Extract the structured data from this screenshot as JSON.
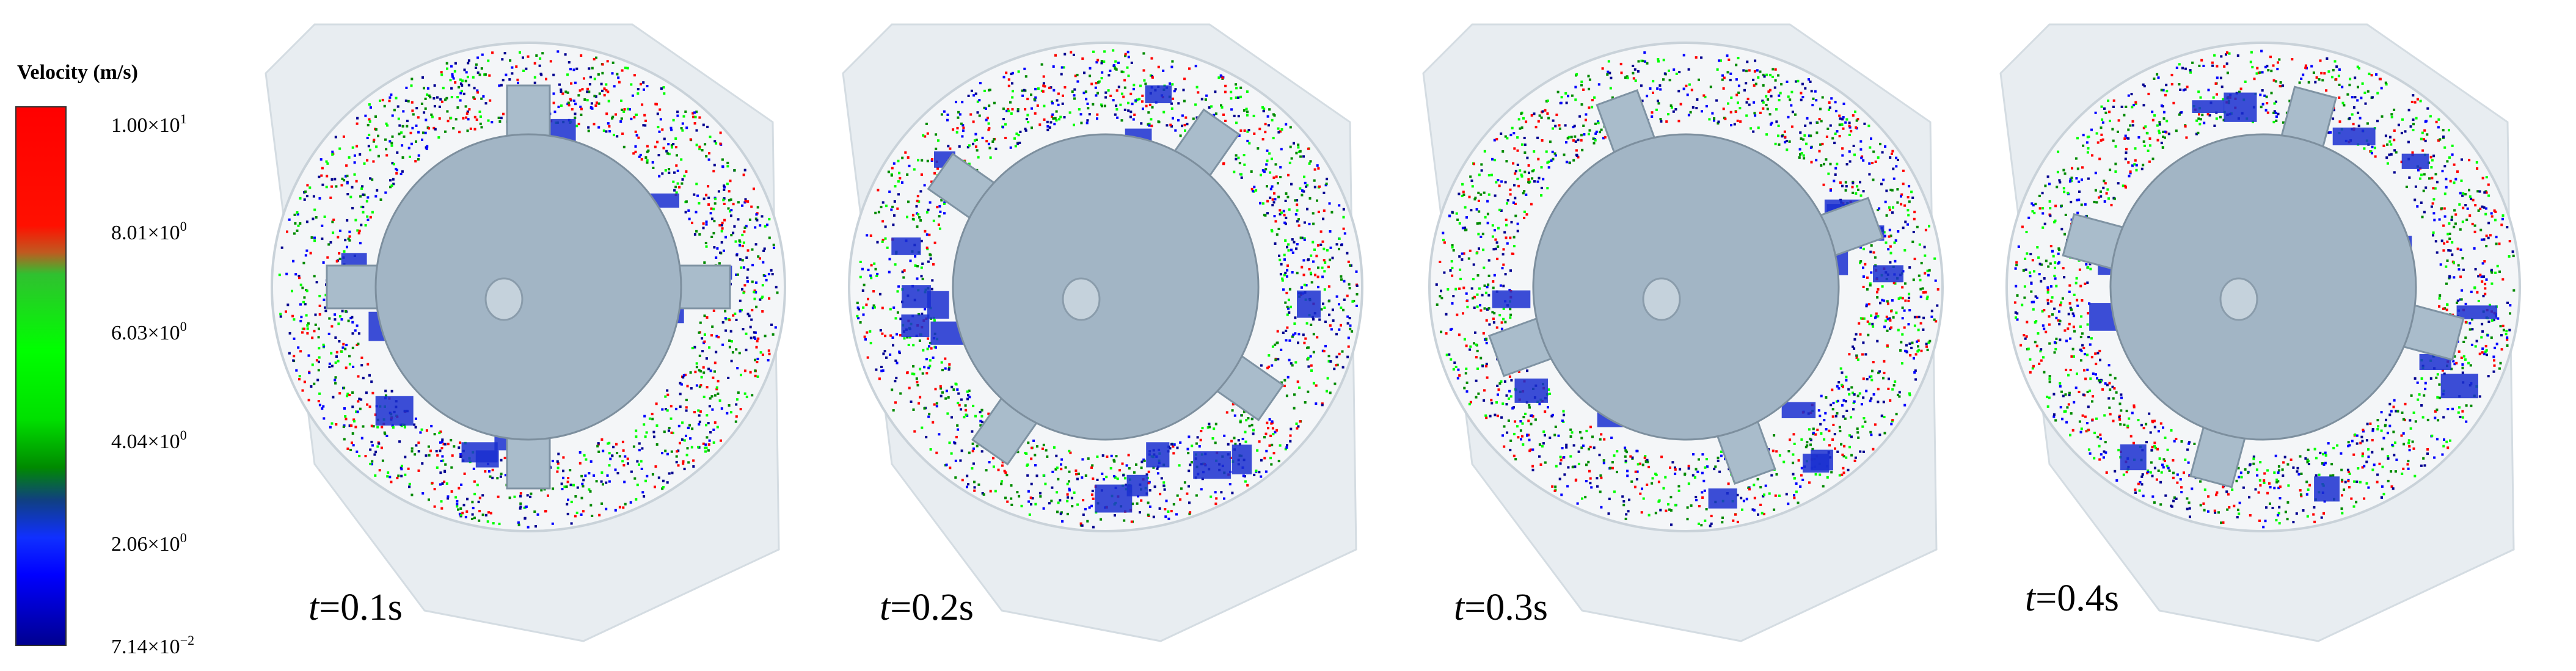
{
  "legend": {
    "title": "Velocity (m/s)",
    "ticks": [
      {
        "mantissa": "1.00",
        "exp": "1"
      },
      {
        "mantissa": "8.01",
        "exp": "0"
      },
      {
        "mantissa": "6.03",
        "exp": "0"
      },
      {
        "mantissa": "4.04",
        "exp": "0"
      },
      {
        "mantissa": "2.06",
        "exp": "0"
      },
      {
        "mantissa": "7.14",
        "exp": "−2"
      }
    ],
    "times_sign": "×10",
    "colors": [
      "#ff0000",
      "#00ff00",
      "#008a00",
      "#0000ff",
      "#000090"
    ]
  },
  "panels": [
    {
      "t_var": "t",
      "t_value": "=0.1s"
    },
    {
      "t_var": "t",
      "t_value": "=0.2s"
    },
    {
      "t_var": "t",
      "t_value": "=0.3s"
    },
    {
      "t_var": "t",
      "t_value": "=0.4s"
    }
  ]
}
